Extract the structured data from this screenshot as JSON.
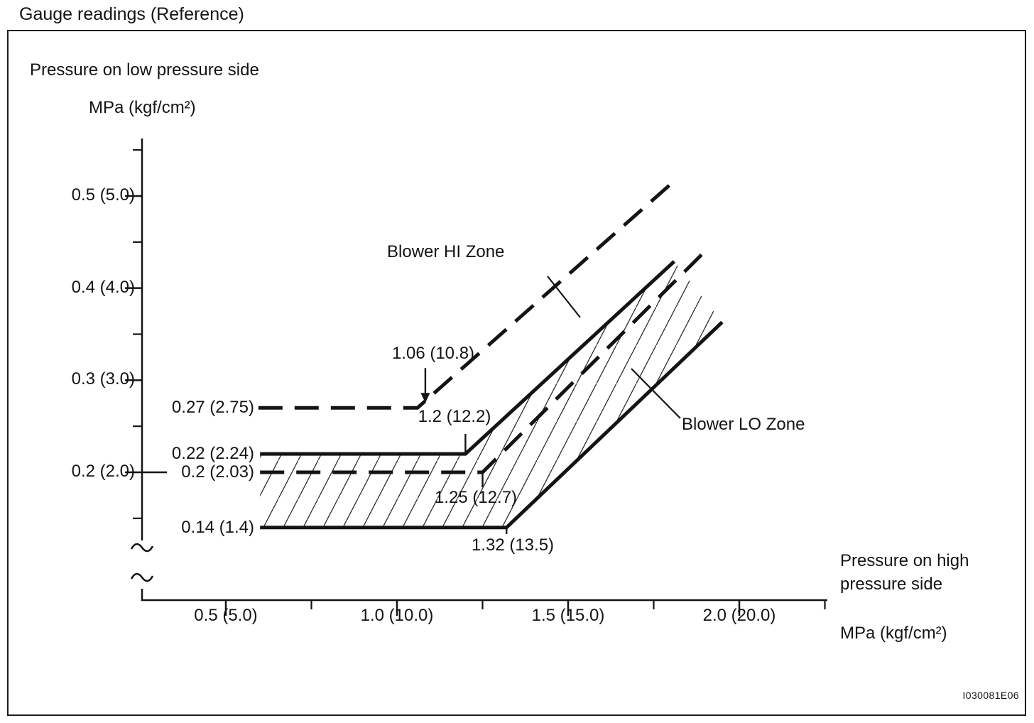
{
  "title": "Gauge readings (Reference)",
  "figure_code": "I030081E06",
  "y_axis": {
    "label": "Pressure on low pressure side",
    "unit": "MPa (kgf/cm²)",
    "ticks": [
      {
        "value": 0.5,
        "label": "0.5 (5.0)"
      },
      {
        "value": 0.4,
        "label": "0.4 (4.0)"
      },
      {
        "value": 0.3,
        "label": "0.3 (3.0)"
      },
      {
        "value": 0.2,
        "label": "0.2 (2.0)"
      }
    ],
    "minor_ticks": [
      0.55,
      0.45,
      0.35,
      0.25,
      0.15
    ]
  },
  "x_axis": {
    "label_line1": "Pressure on high",
    "label_line2": "pressure side",
    "unit": "MPa (kgf/cm²)",
    "ticks": [
      {
        "value": 0.5,
        "label": "0.5 (5.0)"
      },
      {
        "value": 1.0,
        "label": "1.0 (10.0)"
      },
      {
        "value": 1.5,
        "label": "1.5 (15.0)"
      },
      {
        "value": 2.0,
        "label": "2.0 (20.0)"
      }
    ],
    "minor_ticks": [
      0.75,
      1.25,
      1.75,
      2.25
    ]
  },
  "chart_data": {
    "type": "line",
    "title": "Gauge readings (Reference)",
    "xlabel": "Pressure on high pressure side MPa (kgf/cm²)",
    "ylabel": "Pressure on low pressure side MPa (kgf/cm²)",
    "xlim": [
      0.25,
      2.3
    ],
    "ylim": [
      0.1,
      0.56
    ],
    "grid": false,
    "series": [
      {
        "name": "blower-hi-zone-upper",
        "style": "dashed",
        "points": [
          [
            0.595,
            0.27
          ],
          [
            1.06,
            0.27
          ],
          [
            1.8,
            0.513
          ]
        ]
      },
      {
        "name": "blower-lo-zone-upper",
        "style": "solid",
        "points": [
          [
            0.6,
            0.22
          ],
          [
            1.2,
            0.22
          ],
          [
            1.81,
            0.429
          ]
        ]
      },
      {
        "name": "blower-hi-zone-lower",
        "style": "dashed",
        "points": [
          [
            0.6,
            0.2
          ],
          [
            1.25,
            0.2
          ],
          [
            1.9,
            0.44
          ]
        ]
      },
      {
        "name": "blower-lo-zone-lower",
        "style": "solid",
        "points": [
          [
            0.6,
            0.14
          ],
          [
            1.32,
            0.14
          ],
          [
            1.95,
            0.363
          ]
        ]
      }
    ],
    "lo_zone_polygon": [
      [
        0.6,
        0.22
      ],
      [
        1.2,
        0.22
      ],
      [
        1.81,
        0.429
      ],
      [
        1.95,
        0.363
      ],
      [
        1.32,
        0.14
      ],
      [
        0.6,
        0.14
      ]
    ]
  },
  "annotations": {
    "hi_zone": "Blower HI Zone",
    "lo_zone": "Blower LO Zone",
    "hi_upper_knee": "1.06 (10.8)",
    "hi_upper_y": "0.27 (2.75)",
    "lo_upper_y": "0.22 (2.24)",
    "hi_lower_y": "0.2 (2.03)",
    "lo_lower_y": "0.14 (1.4)",
    "lo_upper_knee": "1.2 (12.2)",
    "hi_lower_knee": "1.25 (12.7)",
    "lo_lower_knee": "1.32 (13.5)"
  },
  "colors": {
    "ink": "#141414",
    "background": "#ffffff"
  }
}
